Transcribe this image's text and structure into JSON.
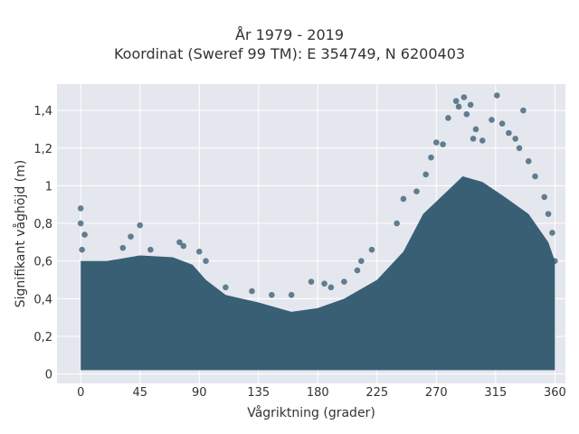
{
  "chart_data": {
    "type": "scatter",
    "title": "År 1979 - 2019",
    "subtitle": "Koordinat (Sweref 99 TM): E 354749, N 6200403",
    "xlabel": "Vågriktning (grader)",
    "ylabel": "Signifikant våghöjd (m)",
    "xlim": [
      -18,
      368
    ],
    "ylim": [
      -0.05,
      1.54
    ],
    "xticks": [
      0,
      45,
      90,
      135,
      180,
      225,
      270,
      315,
      360
    ],
    "xtick_labels": [
      "0",
      "45",
      "90",
      "135",
      "180",
      "225",
      "270",
      "315",
      "360"
    ],
    "yticks": [
      0,
      0.2,
      0.4,
      0.6,
      0.8,
      1.0,
      1.2,
      1.4
    ],
    "ytick_labels": [
      "0",
      "0,2",
      "0,4",
      "0,6",
      "0,8",
      "1",
      "1,2",
      "1,4"
    ],
    "grid": true,
    "marker_color": "#335a70",
    "background": "#e5e7ef",
    "envelope": [
      {
        "x": 0,
        "y": 0.6
      },
      {
        "x": 20,
        "y": 0.6
      },
      {
        "x": 45,
        "y": 0.63
      },
      {
        "x": 70,
        "y": 0.62
      },
      {
        "x": 85,
        "y": 0.58
      },
      {
        "x": 95,
        "y": 0.5
      },
      {
        "x": 110,
        "y": 0.42
      },
      {
        "x": 135,
        "y": 0.38
      },
      {
        "x": 160,
        "y": 0.33
      },
      {
        "x": 180,
        "y": 0.35
      },
      {
        "x": 200,
        "y": 0.4
      },
      {
        "x": 225,
        "y": 0.5
      },
      {
        "x": 245,
        "y": 0.65
      },
      {
        "x": 260,
        "y": 0.85
      },
      {
        "x": 275,
        "y": 0.95
      },
      {
        "x": 290,
        "y": 1.05
      },
      {
        "x": 305,
        "y": 1.02
      },
      {
        "x": 320,
        "y": 0.95
      },
      {
        "x": 340,
        "y": 0.85
      },
      {
        "x": 355,
        "y": 0.7
      },
      {
        "x": 360,
        "y": 0.6
      }
    ],
    "points": [
      {
        "x": 0,
        "y": 0.88
      },
      {
        "x": 0,
        "y": 0.8
      },
      {
        "x": 3,
        "y": 0.74
      },
      {
        "x": 1,
        "y": 0.66
      },
      {
        "x": 45,
        "y": 0.79
      },
      {
        "x": 32,
        "y": 0.67
      },
      {
        "x": 38,
        "y": 0.73
      },
      {
        "x": 53,
        "y": 0.66
      },
      {
        "x": 75,
        "y": 0.7
      },
      {
        "x": 78,
        "y": 0.68
      },
      {
        "x": 90,
        "y": 0.65
      },
      {
        "x": 95,
        "y": 0.6
      },
      {
        "x": 110,
        "y": 0.46
      },
      {
        "x": 130,
        "y": 0.44
      },
      {
        "x": 145,
        "y": 0.42
      },
      {
        "x": 160,
        "y": 0.42
      },
      {
        "x": 175,
        "y": 0.49
      },
      {
        "x": 185,
        "y": 0.48
      },
      {
        "x": 190,
        "y": 0.46
      },
      {
        "x": 200,
        "y": 0.49
      },
      {
        "x": 210,
        "y": 0.55
      },
      {
        "x": 213,
        "y": 0.6
      },
      {
        "x": 221,
        "y": 0.66
      },
      {
        "x": 240,
        "y": 0.8
      },
      {
        "x": 245,
        "y": 0.93
      },
      {
        "x": 255,
        "y": 0.97
      },
      {
        "x": 262,
        "y": 1.06
      },
      {
        "x": 266,
        "y": 1.15
      },
      {
        "x": 270,
        "y": 1.23
      },
      {
        "x": 275,
        "y": 1.22
      },
      {
        "x": 279,
        "y": 1.36
      },
      {
        "x": 285,
        "y": 1.45
      },
      {
        "x": 287,
        "y": 1.42
      },
      {
        "x": 291,
        "y": 1.47
      },
      {
        "x": 293,
        "y": 1.38
      },
      {
        "x": 296,
        "y": 1.43
      },
      {
        "x": 298,
        "y": 1.25
      },
      {
        "x": 300,
        "y": 1.3
      },
      {
        "x": 305,
        "y": 1.24
      },
      {
        "x": 312,
        "y": 1.35
      },
      {
        "x": 316,
        "y": 1.48
      },
      {
        "x": 320,
        "y": 1.33
      },
      {
        "x": 325,
        "y": 1.28
      },
      {
        "x": 330,
        "y": 1.25
      },
      {
        "x": 333,
        "y": 1.2
      },
      {
        "x": 336,
        "y": 1.4
      },
      {
        "x": 340,
        "y": 1.13
      },
      {
        "x": 345,
        "y": 1.05
      },
      {
        "x": 352,
        "y": 0.94
      },
      {
        "x": 355,
        "y": 0.85
      },
      {
        "x": 358,
        "y": 0.75
      },
      {
        "x": 360,
        "y": 0.6
      }
    ]
  }
}
